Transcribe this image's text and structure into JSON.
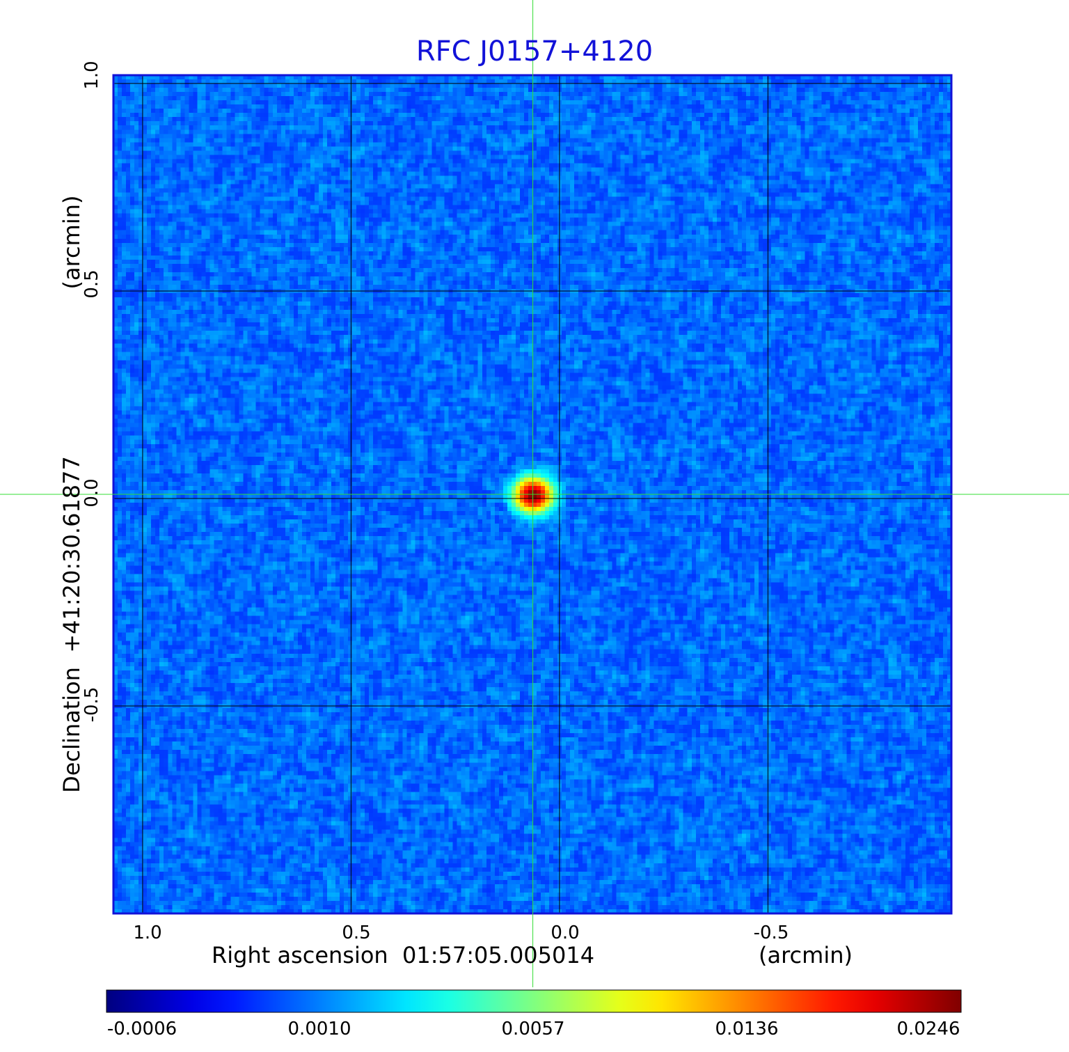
{
  "chart_data": {
    "type": "heatmap",
    "title": "RFC J0157+4120",
    "title_color": "#1212d8",
    "xlabel": "Right ascension  01:57:05.005014",
    "xunit": "(arcmin)",
    "ylabel": "Declination  +41:20:30.61877",
    "yunit": "(arcmin)",
    "x_ticks": [
      1.0,
      0.5,
      0.0,
      -0.5
    ],
    "x_tick_labels": [
      "1.0",
      "0.5",
      "0.0",
      "-0.5"
    ],
    "y_ticks": [
      1.0,
      0.5,
      0.0,
      -0.5
    ],
    "y_tick_labels": [
      "1.0",
      "0.5",
      "0.0",
      "-0.5"
    ],
    "xlim": [
      1.07,
      -0.94
    ],
    "ylim": [
      -1.0,
      1.02
    ],
    "grid": true,
    "grid_color": "#000000",
    "frame_color": "#1212d8",
    "crosshair": {
      "x": 0.064,
      "y": 0.01,
      "color": "#33dd33"
    },
    "source": {
      "x": 0.063,
      "y": 0.008,
      "peak": 0.0246
    },
    "background_level": 0.0002,
    "colorbar": {
      "orientation": "horizontal",
      "colormap": "jet",
      "tick_labels": [
        "-0.0006",
        "0.0010",
        "0.0057",
        "0.0136",
        "0.0246"
      ],
      "tick_values": [
        -0.0006,
        0.001,
        0.0057,
        0.0136,
        0.0246
      ]
    }
  }
}
